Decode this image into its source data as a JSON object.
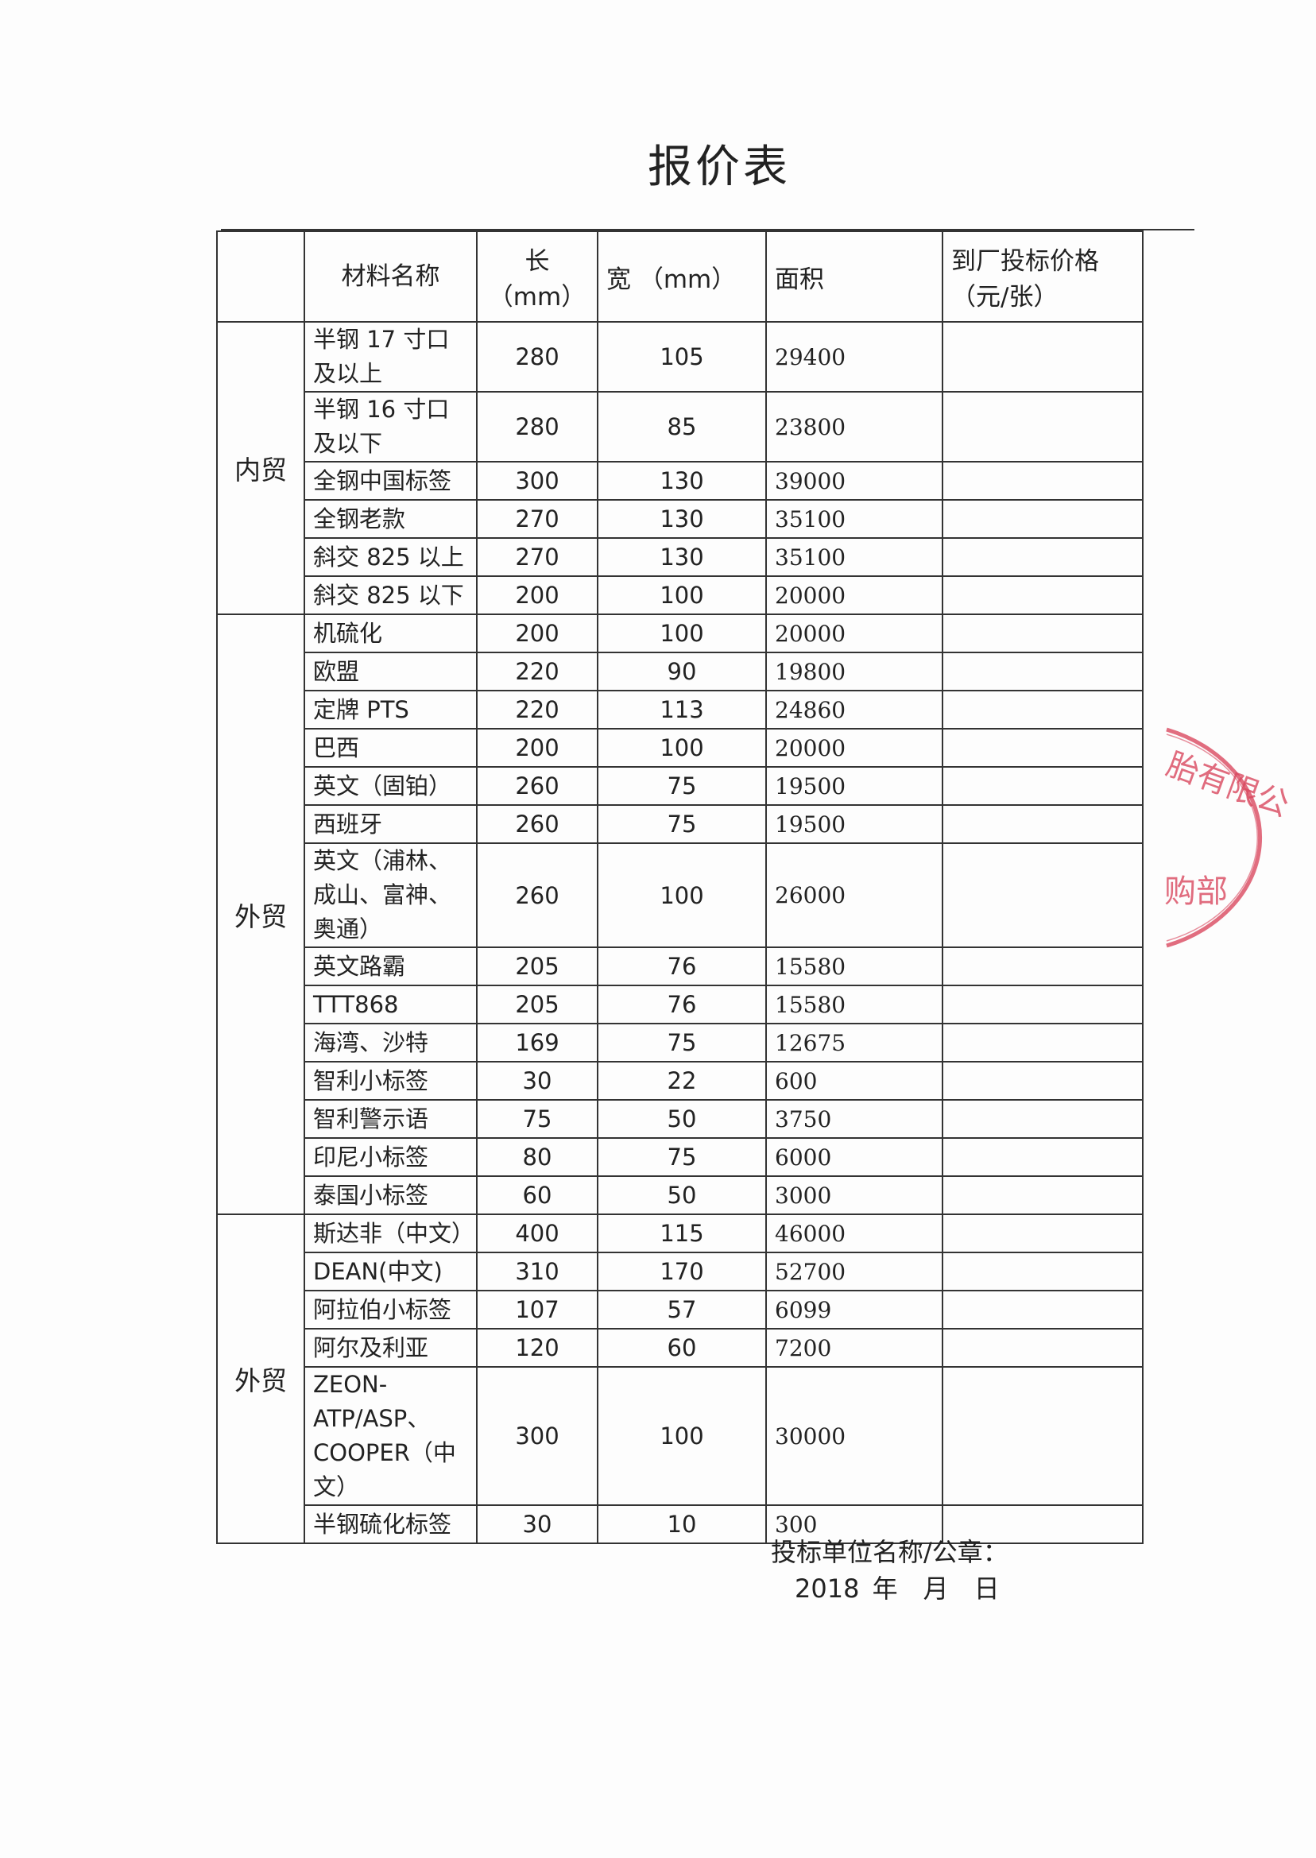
{
  "title": "报价表",
  "headers": {
    "group": "",
    "name": "材料名称",
    "length": "长（mm）",
    "width": "宽 （mm）",
    "area": "面积",
    "price_line1": "到厂投标价格",
    "price_line2": "（元/张）"
  },
  "groups": [
    {
      "label": "内贸",
      "rows": [
        {
          "name": "半钢 17 寸口及以上",
          "length": "280",
          "width": "105",
          "area": "29400",
          "price": "",
          "tall": true
        },
        {
          "name": "半钢 16 寸口及以下",
          "length": "280",
          "width": "85",
          "area": "23800",
          "price": "",
          "tall": true
        },
        {
          "name": "全钢中国标签",
          "length": "300",
          "width": "130",
          "area": "39000",
          "price": ""
        },
        {
          "name": "全钢老款",
          "length": "270",
          "width": "130",
          "area": "35100",
          "price": ""
        },
        {
          "name": "斜交 825 以上",
          "length": "270",
          "width": "130",
          "area": "35100",
          "price": ""
        },
        {
          "name": "斜交 825 以下",
          "length": "200",
          "width": "100",
          "area": "20000",
          "price": ""
        }
      ]
    },
    {
      "label": "外贸",
      "rows": [
        {
          "name": "机硫化",
          "length": "200",
          "width": "100",
          "area": "20000",
          "price": ""
        },
        {
          "name": "欧盟",
          "length": "220",
          "width": "90",
          "area": "19800",
          "price": ""
        },
        {
          "name": "定牌 PTS",
          "length": "220",
          "width": "113",
          "area": "24860",
          "price": ""
        },
        {
          "name": "巴西",
          "length": "200",
          "width": "100",
          "area": "20000",
          "price": ""
        },
        {
          "name": "英文（固铂）",
          "length": "260",
          "width": "75",
          "area": "19500",
          "price": ""
        },
        {
          "name": "西班牙",
          "length": "260",
          "width": "75",
          "area": "19500",
          "price": ""
        },
        {
          "name": "英文（浦林、成山、富神、奥通）",
          "length": "260",
          "width": "100",
          "area": "26000",
          "price": "",
          "tall": true
        },
        {
          "name": "英文路霸",
          "length": "205",
          "width": "76",
          "area": "15580",
          "price": ""
        },
        {
          "name": "TTT868",
          "length": "205",
          "width": "76",
          "area": "15580",
          "price": ""
        },
        {
          "name": "海湾、沙特",
          "length": "169",
          "width": "75",
          "area": "12675",
          "price": ""
        },
        {
          "name": "智利小标签",
          "length": "30",
          "width": "22",
          "area": "600",
          "price": ""
        },
        {
          "name": "智利警示语",
          "length": "75",
          "width": "50",
          "area": "3750",
          "price": ""
        },
        {
          "name": "印尼小标签",
          "length": "80",
          "width": "75",
          "area": "6000",
          "price": ""
        },
        {
          "name": "泰国小标签",
          "length": "60",
          "width": "50",
          "area": "3000",
          "price": ""
        }
      ]
    },
    {
      "label": "外贸",
      "rows": [
        {
          "name": "斯达非（中文）",
          "length": "400",
          "width": "115",
          "area": "46000",
          "price": ""
        },
        {
          "name": "DEAN(中文)",
          "length": "310",
          "width": "170",
          "area": "52700",
          "price": ""
        },
        {
          "name": "阿拉伯小标签",
          "length": "107",
          "width": "57",
          "area": "6099",
          "price": ""
        },
        {
          "name": "阿尔及利亚",
          "length": "120",
          "width": "60",
          "area": "7200",
          "price": ""
        },
        {
          "name": "ZEON-ATP/ASP、COOPER（中文）",
          "length": "300",
          "width": "100",
          "area": "30000",
          "price": "",
          "tall": true
        },
        {
          "name": "半钢硫化标签",
          "length": "30",
          "width": "10",
          "area": "300",
          "price": ""
        }
      ]
    }
  ],
  "footer": {
    "signature_label": "投标单位名称/公章：",
    "date": "2018 年　月　日"
  },
  "stamp": {
    "text_top": "胎有限公司",
    "text_bottom": "购部",
    "color": "#d9485f"
  }
}
